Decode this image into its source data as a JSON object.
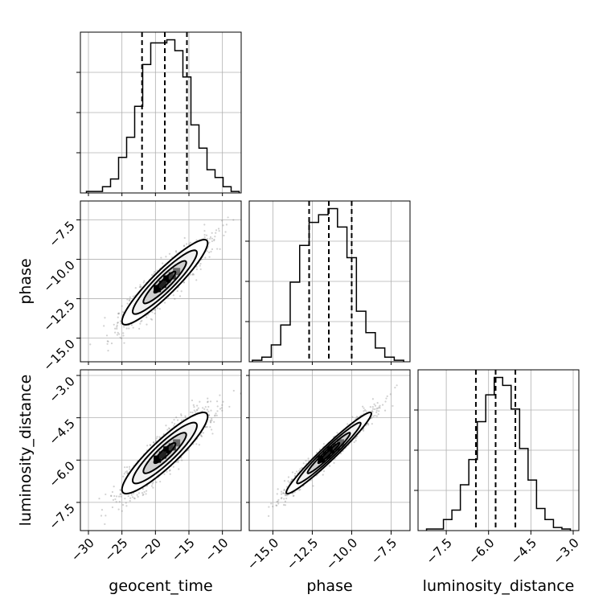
{
  "chart_data": {
    "type": "corner",
    "parameters": [
      "geocent_time",
      "phase",
      "luminosity_distance"
    ],
    "axis_labels": {
      "x": [
        "geocent_time",
        "phase",
        "luminosity_distance"
      ],
      "y": [
        "phase",
        "luminosity_distance"
      ]
    },
    "ranges": {
      "geocent_time": [
        -31.2,
        -7.2
      ],
      "phase": [
        -16.5,
        -6.3
      ],
      "luminosity_distance": [
        -8.5,
        -2.8
      ]
    },
    "ticks": {
      "geocent_time": [
        {
          "value": -30,
          "label": "−30"
        },
        {
          "value": -25,
          "label": "−25"
        },
        {
          "value": -20,
          "label": "−20"
        },
        {
          "value": -15,
          "label": "−15"
        },
        {
          "value": -10,
          "label": "−10"
        }
      ],
      "phase": [
        {
          "value": -15,
          "label": "−15.0"
        },
        {
          "value": -12.5,
          "label": "−12.5"
        },
        {
          "value": -10,
          "label": "−10.0"
        },
        {
          "value": -7.5,
          "label": "−7.5"
        }
      ],
      "luminosity_distance": [
        {
          "value": -7.5,
          "label": "−7.5"
        },
        {
          "value": -6,
          "label": "−6.0"
        },
        {
          "value": -4.5,
          "label": "−4.5"
        },
        {
          "value": -3,
          "label": "−3.0"
        }
      ]
    },
    "histograms": {
      "geocent_time": {
        "edges": [
          -30.3,
          -29.1,
          -27.9,
          -26.7,
          -25.5,
          -24.3,
          -23.1,
          -21.9,
          -20.7,
          -19.5,
          -18.3,
          -17.1,
          -15.9,
          -14.7,
          -13.5,
          -12.3,
          -11.1,
          -9.9,
          -8.7,
          -7.5
        ],
        "counts": [
          1,
          1,
          4,
          9,
          23,
          36,
          56,
          83,
          97,
          97,
          99,
          92,
          75,
          44,
          29,
          15,
          10,
          4,
          1
        ],
        "quantiles": [
          -22.0,
          -18.6,
          -15.3
        ]
      },
      "phase": {
        "edges": [
          -16.3,
          -15.7,
          -15.1,
          -14.5,
          -13.9,
          -13.3,
          -12.7,
          -12.1,
          -11.5,
          -10.9,
          -10.3,
          -9.7,
          -9.1,
          -8.5,
          -7.9,
          -7.3,
          -6.7
        ],
        "counts": [
          1,
          3,
          11,
          24,
          52,
          76,
          91,
          96,
          100,
          88,
          68,
          33,
          19,
          9,
          3,
          1
        ],
        "quantiles": [
          -12.7,
          -11.45,
          -10.0
        ]
      },
      "luminosity_distance": {
        "edges": [
          -8.2,
          -7.9,
          -7.6,
          -7.3,
          -7.0,
          -6.7,
          -6.4,
          -6.1,
          -5.8,
          -5.5,
          -5.2,
          -4.9,
          -4.6,
          -4.3,
          -4.0,
          -3.7,
          -3.4,
          -3.1
        ],
        "counts": [
          1,
          1,
          7,
          13,
          29,
          45,
          69,
          86,
          97,
          92,
          77,
          52,
          32,
          14,
          7,
          2,
          1
        ],
        "quantiles": [
          -6.45,
          -5.75,
          -5.05
        ]
      }
    },
    "correlations": {
      "phase|geocent_time": {
        "mean": [
          -18.6,
          -11.45
        ],
        "sd": [
          3.2,
          1.35
        ],
        "rho": 0.92
      },
      "luminosity_distance|geocent_time": {
        "mean": [
          -18.6,
          -5.75
        ],
        "sd": [
          3.2,
          0.72
        ],
        "rho": 0.9
      },
      "luminosity_distance|phase": {
        "mean": [
          -11.45,
          -5.75
        ],
        "sd": [
          1.35,
          0.72
        ],
        "rho": 0.97
      }
    },
    "contour_levels_sigma": [
      0.5,
      1.0,
      1.5,
      2.0
    ],
    "grid": true
  }
}
